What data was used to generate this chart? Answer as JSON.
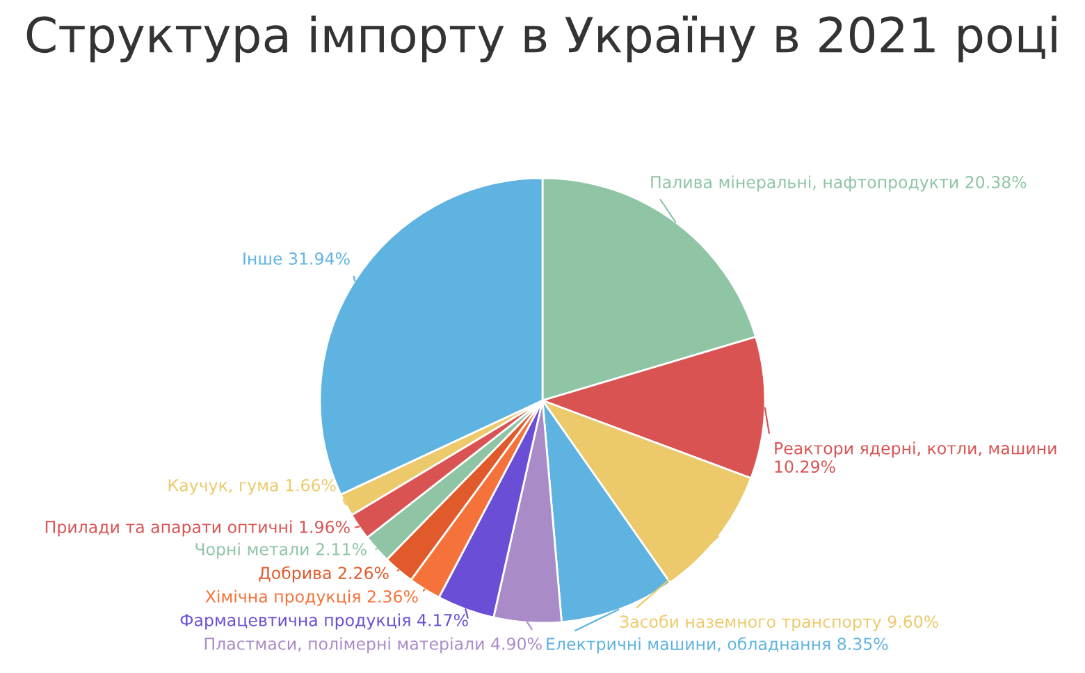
{
  "chart_data": {
    "type": "pie",
    "title": "Структура імпорту в Україну в 2021 році",
    "categories": [
      "Палива мінеральні, нафтопродукти",
      "Реактори ядерні, котли, машини",
      "Засоби наземного транспорту",
      "Електричні машини, обладнання",
      "Пластмаси, полімерні матеріали",
      "Фармацевтична продукція",
      "Хімічна продукція",
      "Добрива",
      "Чорні метали",
      "Прилади та апарати оптичні",
      "Каучук, гума",
      "Інше"
    ],
    "values": [
      20.38,
      10.29,
      9.6,
      8.35,
      4.9,
      4.17,
      2.36,
      2.26,
      2.11,
      1.96,
      1.66,
      31.94
    ],
    "value_labels": [
      "20.38%",
      "10.29%",
      "9.60%",
      "8.35%",
      "4.90%",
      "4.17%",
      "2.36%",
      "2.26%",
      "2.11%",
      "1.96%",
      "1.66%",
      "31.94%"
    ],
    "colors": [
      "#8fc4a5",
      "#d95353",
      "#ecc96a",
      "#5eb3e0",
      "#a98bc8",
      "#6a4fd6",
      "#f5733a",
      "#e05a2b",
      "#8fc4a5",
      "#d95353",
      "#ecc96a",
      "#5eb3e0"
    ]
  }
}
